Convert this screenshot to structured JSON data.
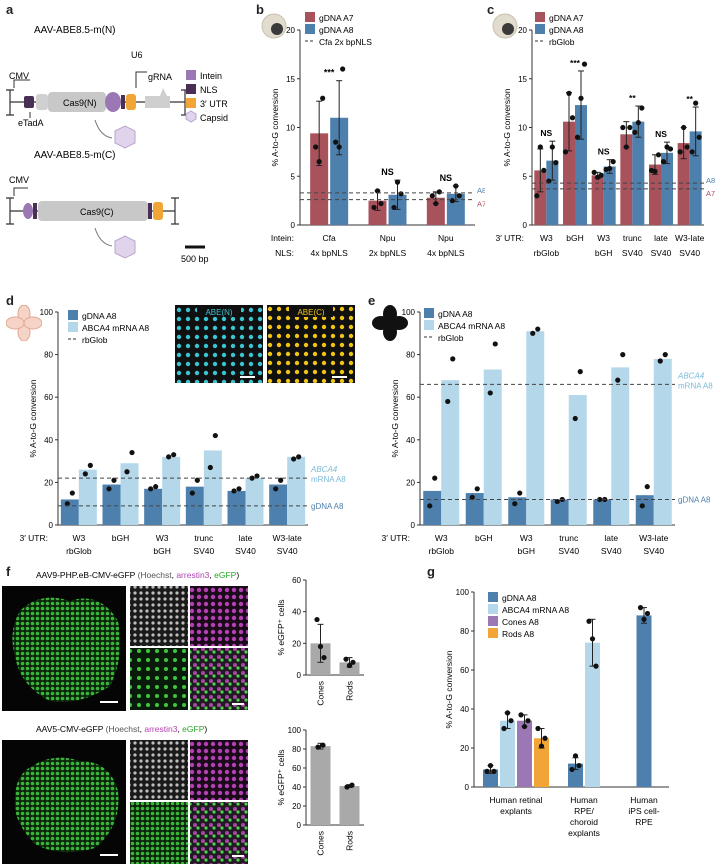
{
  "colors": {
    "red": "#a8525b",
    "blue": "#4e80ad",
    "lightblue": "#b4d7ea",
    "purple": "#9b78b4",
    "navy": "#4a2f55",
    "orange": "#f0a536",
    "pink": "#d8c8e4",
    "gray": "#a9a9a9",
    "green": "#3ec43e",
    "cyan": "#3ac5d3",
    "yellow": "#f0c416",
    "magenta": "#b440b4"
  },
  "panels": {
    "a": "a",
    "b": "b",
    "c": "c",
    "d": "d",
    "e": "e",
    "f": "f",
    "g": "g"
  },
  "schematic": {
    "n_title": "AAV-ABE8.5-m(N)",
    "c_title": "AAV-ABE8.5-m(C)",
    "cmv": "CMV",
    "u6": "U6",
    "grna": "gRNA",
    "etada": "eTadA",
    "cas9n": "Cas9(N)",
    "cas9c": "Cas9(C)",
    "scale": "500 bp",
    "legend": [
      "Intein",
      "NLS",
      "3′ UTR",
      "Capsid"
    ]
  },
  "f_images": {
    "top_title": "AAV9-PHP.eB-CMV-eGFP",
    "bottom_title": "AAV5-CMV-eGFP",
    "paren_open": " (",
    "hoechst": "Hoechst",
    "comma": ", ",
    "arrestin": "arrestin3",
    "egfp": "eGFP",
    "paren_close": ")"
  },
  "d_images": {
    "left": "ABE(N)",
    "right": "ABE(C)"
  },
  "chart_data": [
    {
      "panel": "b",
      "type": "bar",
      "ylabel": "% A-to-G conversion",
      "ylim": [
        0,
        20
      ],
      "yticks": [
        0,
        5,
        10,
        15,
        20
      ],
      "legend": [
        "gDNA A7",
        "gDNA A8",
        "Cfa 2x bpNLS"
      ],
      "row_labels": [
        "Intein:",
        "NLS:"
      ],
      "categories": [
        [
          "Cfa",
          "4x bpNLS"
        ],
        [
          "Npu",
          "2x bpNLS"
        ],
        [
          "Npu",
          "4x bpNLS"
        ]
      ],
      "series": [
        {
          "name": "gDNA A7",
          "values": [
            9.4,
            2.5,
            2.8
          ],
          "err": [
            3.3,
            1.0,
            0.6
          ],
          "points": [
            [
              8,
              6.5,
              13
            ],
            [
              1.8,
              3.5,
              2.2
            ],
            [
              3,
              2.2,
              3.4
            ]
          ]
        },
        {
          "name": "gDNA A8",
          "values": [
            11,
            3.1,
            3.2
          ],
          "err": [
            3.8,
            1.5,
            0.8
          ],
          "points": [
            [
              8.5,
              8,
              16
            ],
            [
              1.8,
              4.4,
              3.2
            ],
            [
              2.5,
              4,
              3
            ]
          ]
        }
      ],
      "reference_lines": [
        {
          "label": "A8",
          "value": 3.3
        },
        {
          "label": "A7",
          "value": 2.6
        }
      ],
      "significance": [
        "***",
        "NS",
        "NS"
      ]
    },
    {
      "panel": "c",
      "type": "bar",
      "ylabel": "% A-to-G conversion",
      "ylim": [
        0,
        20
      ],
      "yticks": [
        0,
        5,
        10,
        15,
        20
      ],
      "legend": [
        "gDNA A7",
        "gDNA A8",
        "rbGlob"
      ],
      "row_label": "3′ UTR:",
      "categories": [
        [
          "W3",
          "rbGlob"
        ],
        [
          "bGH",
          ""
        ],
        [
          "W3",
          "bGH"
        ],
        [
          "trunc",
          "SV40"
        ],
        [
          "late",
          "SV40"
        ],
        [
          "W3-late",
          "SV40"
        ]
      ],
      "series": [
        {
          "name": "gDNA A7",
          "values": [
            5.6,
            10.6,
            5.1,
            9.3,
            6.2,
            8.4
          ],
          "err": [
            2.2,
            3.0,
            0.3,
            1.3,
            1.0,
            1.6
          ],
          "points": [
            [
              3,
              8,
              5.6
            ],
            [
              7.5,
              13.5,
              11
            ],
            [
              5.4,
              4.9,
              5.1
            ],
            [
              10,
              8,
              10
            ],
            [
              5.6,
              5.5,
              7.2
            ],
            [
              7.5,
              10,
              8
            ]
          ]
        },
        {
          "name": "gDNA A8",
          "values": [
            6.6,
            12.3,
            6.0,
            10.6,
            7.4,
            9.6
          ],
          "err": [
            2.0,
            3.5,
            0.7,
            1.6,
            1.1,
            2.5
          ],
          "points": [
            [
              4.5,
              8,
              6.4
            ],
            [
              9,
              13,
              16.5
            ],
            [
              5.7,
              5.8,
              6.5
            ],
            [
              9.5,
              10.5,
              12
            ],
            [
              6.5,
              8,
              7.8
            ],
            [
              7.5,
              12.5,
              9
            ]
          ]
        }
      ],
      "reference_lines": [
        {
          "label": "A8",
          "value": 4.3
        },
        {
          "label": "A7",
          "value": 3.7
        }
      ],
      "significance": [
        "NS",
        "***",
        "NS",
        "**",
        "NS",
        "**"
      ]
    },
    {
      "panel": "d",
      "type": "bar",
      "ylabel": "% A-to-G conversion",
      "ylim": [
        0,
        100
      ],
      "yticks": [
        0,
        20,
        40,
        60,
        80,
        100
      ],
      "legend": [
        "gDNA A8",
        "ABCA4 mRNA A8",
        "rbGlob"
      ],
      "row_label": "3′ UTR:",
      "categories": [
        [
          "W3",
          "rbGlob"
        ],
        [
          "bGH",
          ""
        ],
        [
          "W3",
          "bGH"
        ],
        [
          "trunc",
          "SV40"
        ],
        [
          "late",
          "SV40"
        ],
        [
          "W3-late",
          "SV40"
        ]
      ],
      "series": [
        {
          "name": "gDNA A8",
          "values": [
            12,
            19,
            17,
            18,
            16,
            19
          ],
          "points": [
            [
              10,
              15
            ],
            [
              17,
              21
            ],
            [
              17,
              18
            ],
            [
              15,
              21
            ],
            [
              16,
              17
            ],
            [
              17,
              21
            ]
          ]
        },
        {
          "name": "ABCA4 mRNA A8",
          "values": [
            26,
            29,
            32,
            35,
            22,
            32
          ],
          "points": [
            [
              24,
              28
            ],
            [
              25,
              34
            ],
            [
              32,
              33
            ],
            [
              27,
              42
            ],
            [
              22,
              23
            ],
            [
              31,
              32
            ]
          ]
        }
      ],
      "reference_lines": [
        {
          "label": "ABCA4 mRNA A8",
          "value": 22
        },
        {
          "label": "gDNA A8",
          "value": 9
        }
      ]
    },
    {
      "panel": "e",
      "type": "bar",
      "ylabel": "% A-to-G conversion",
      "ylim": [
        0,
        100
      ],
      "yticks": [
        0,
        20,
        40,
        60,
        80,
        100
      ],
      "legend": [
        "gDNA A8",
        "ABCA4 mRNA A8",
        "rbGlob"
      ],
      "row_label": "3′ UTR:",
      "categories": [
        [
          "W3",
          "rbGlob"
        ],
        [
          "bGH",
          ""
        ],
        [
          "W3",
          "bGH"
        ],
        [
          "trunc",
          "SV40"
        ],
        [
          "late",
          "SV40"
        ],
        [
          "W3-late",
          "SV40"
        ]
      ],
      "series": [
        {
          "name": "gDNA A8",
          "values": [
            16,
            15,
            13,
            12,
            12,
            14
          ],
          "points": [
            [
              9,
              22
            ],
            [
              13,
              17
            ],
            [
              10,
              15
            ],
            [
              11,
              12
            ],
            [
              12,
              12
            ],
            [
              9,
              18
            ]
          ]
        },
        {
          "name": "ABCA4 mRNA A8",
          "values": [
            68,
            73,
            91,
            61,
            74,
            78
          ],
          "points": [
            [
              58,
              78
            ],
            [
              62,
              85
            ],
            [
              90,
              92
            ],
            [
              50,
              72
            ],
            [
              68,
              80
            ],
            [
              77,
              80
            ]
          ]
        }
      ],
      "reference_lines": [
        {
          "label": "ABCA4 mRNA A8",
          "value": 66
        },
        {
          "label": "gDNA A8",
          "value": 12
        }
      ]
    },
    {
      "panel": "f-top",
      "type": "bar",
      "ylabel": "% eGFP⁺ cells",
      "ylim": [
        0,
        60
      ],
      "yticks": [
        0,
        20,
        40,
        60
      ],
      "categories": [
        "Cones",
        "Rods"
      ],
      "values": [
        20,
        8
      ],
      "err": [
        12,
        3
      ],
      "points": [
        [
          35,
          18,
          11
        ],
        [
          10,
          6,
          8
        ]
      ]
    },
    {
      "panel": "f-bottom",
      "type": "bar",
      "ylabel": "% eGFP⁺ cells",
      "ylim": [
        0,
        100
      ],
      "yticks": [
        0,
        20,
        40,
        60,
        80,
        100
      ],
      "categories": [
        "Cones",
        "Rods"
      ],
      "values": [
        83,
        41
      ],
      "err": [
        3,
        1.5
      ],
      "points": [
        [
          82,
          84
        ],
        [
          40,
          42
        ]
      ]
    },
    {
      "panel": "g",
      "type": "bar",
      "ylabel": "% A-to-G conversion",
      "ylim": [
        0,
        100
      ],
      "yticks": [
        0,
        20,
        40,
        60,
        80,
        100
      ],
      "legend": [
        "gDNA A8",
        "ABCA4 mRNA A8",
        "Cones A8",
        "Rods A8"
      ],
      "categories": [
        [
          "Human retinal",
          "explants"
        ],
        [
          "Human",
          "RPE/",
          "choroid",
          "explants"
        ],
        [
          "Human",
          "iPS cell-",
          "RPE"
        ]
      ],
      "groups": [
        [
          {
            "series": "gDNA A8",
            "value": 9,
            "err": 2,
            "points": [
              8,
              11,
              8
            ]
          },
          {
            "series": "ABCA4 mRNA A8",
            "value": 34,
            "err": 4,
            "points": [
              30,
              38,
              34
            ]
          },
          {
            "series": "Cones A8",
            "value": 34,
            "err": 3,
            "points": [
              37,
              31,
              34
            ]
          },
          {
            "series": "Rods A8",
            "value": 25,
            "err": 5,
            "points": [
              30,
              21,
              25
            ]
          }
        ],
        [
          {
            "series": "gDNA A8",
            "value": 12,
            "err": 3,
            "points": [
              9,
              16,
              11
            ]
          },
          {
            "series": "ABCA4 mRNA A8",
            "value": 74,
            "err": 12,
            "points": [
              85,
              76,
              62
            ]
          }
        ],
        [
          {
            "series": "gDNA A8",
            "value": 88,
            "err": 4,
            "points": [
              92,
              86,
              89
            ]
          }
        ]
      ]
    }
  ]
}
